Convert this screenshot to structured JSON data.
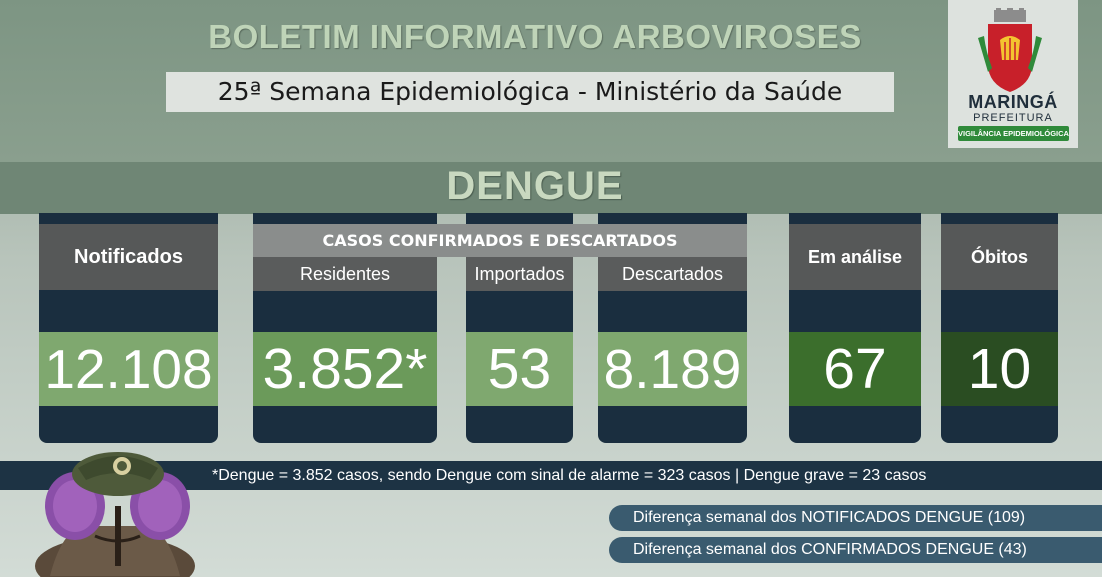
{
  "header": {
    "title": "BOLETIM INFORMATIVO ARBOVIROSES",
    "subtitle": "25ª Semana Epidemiológica - Ministério da Saúde"
  },
  "logo": {
    "name": "MARINGÁ",
    "sub": "PREFEITURA",
    "badge": "VIGILÂNCIA EPIDEMIOLÓGICA"
  },
  "section_title": "DENGUE",
  "group_header": "CASOS CONFIRMADOS E DESCARTADOS",
  "cards": {
    "notificados": {
      "label": "Notificados",
      "value": "12.108"
    },
    "residentes": {
      "label": "Residentes",
      "value": "3.852*"
    },
    "importados": {
      "label": "Importados",
      "value": "53"
    },
    "descartados": {
      "label": "Descartados",
      "value": "8.189"
    },
    "em_analise": {
      "label": "Em análise",
      "value": "67"
    },
    "obitos": {
      "label": "Óbitos",
      "value": "10"
    }
  },
  "footnote": "*Dengue = 3.852 casos, sendo Dengue com sinal de alarme = 323 casos |  Dengue grave = 23 casos",
  "weekly": {
    "notificados": "Diferença semanal dos NOTIFICADOS DENGUE (109)",
    "confirmados": "Diferença semanal dos CONFIRMADOS DENGUE (43)"
  },
  "colors": {
    "card_bg": "#1a2e3f",
    "light_green": "#7fa86f",
    "mid_green": "#6b9a5a",
    "dark_green": "#3b6e2c",
    "darkest_green": "#2a4d22"
  }
}
